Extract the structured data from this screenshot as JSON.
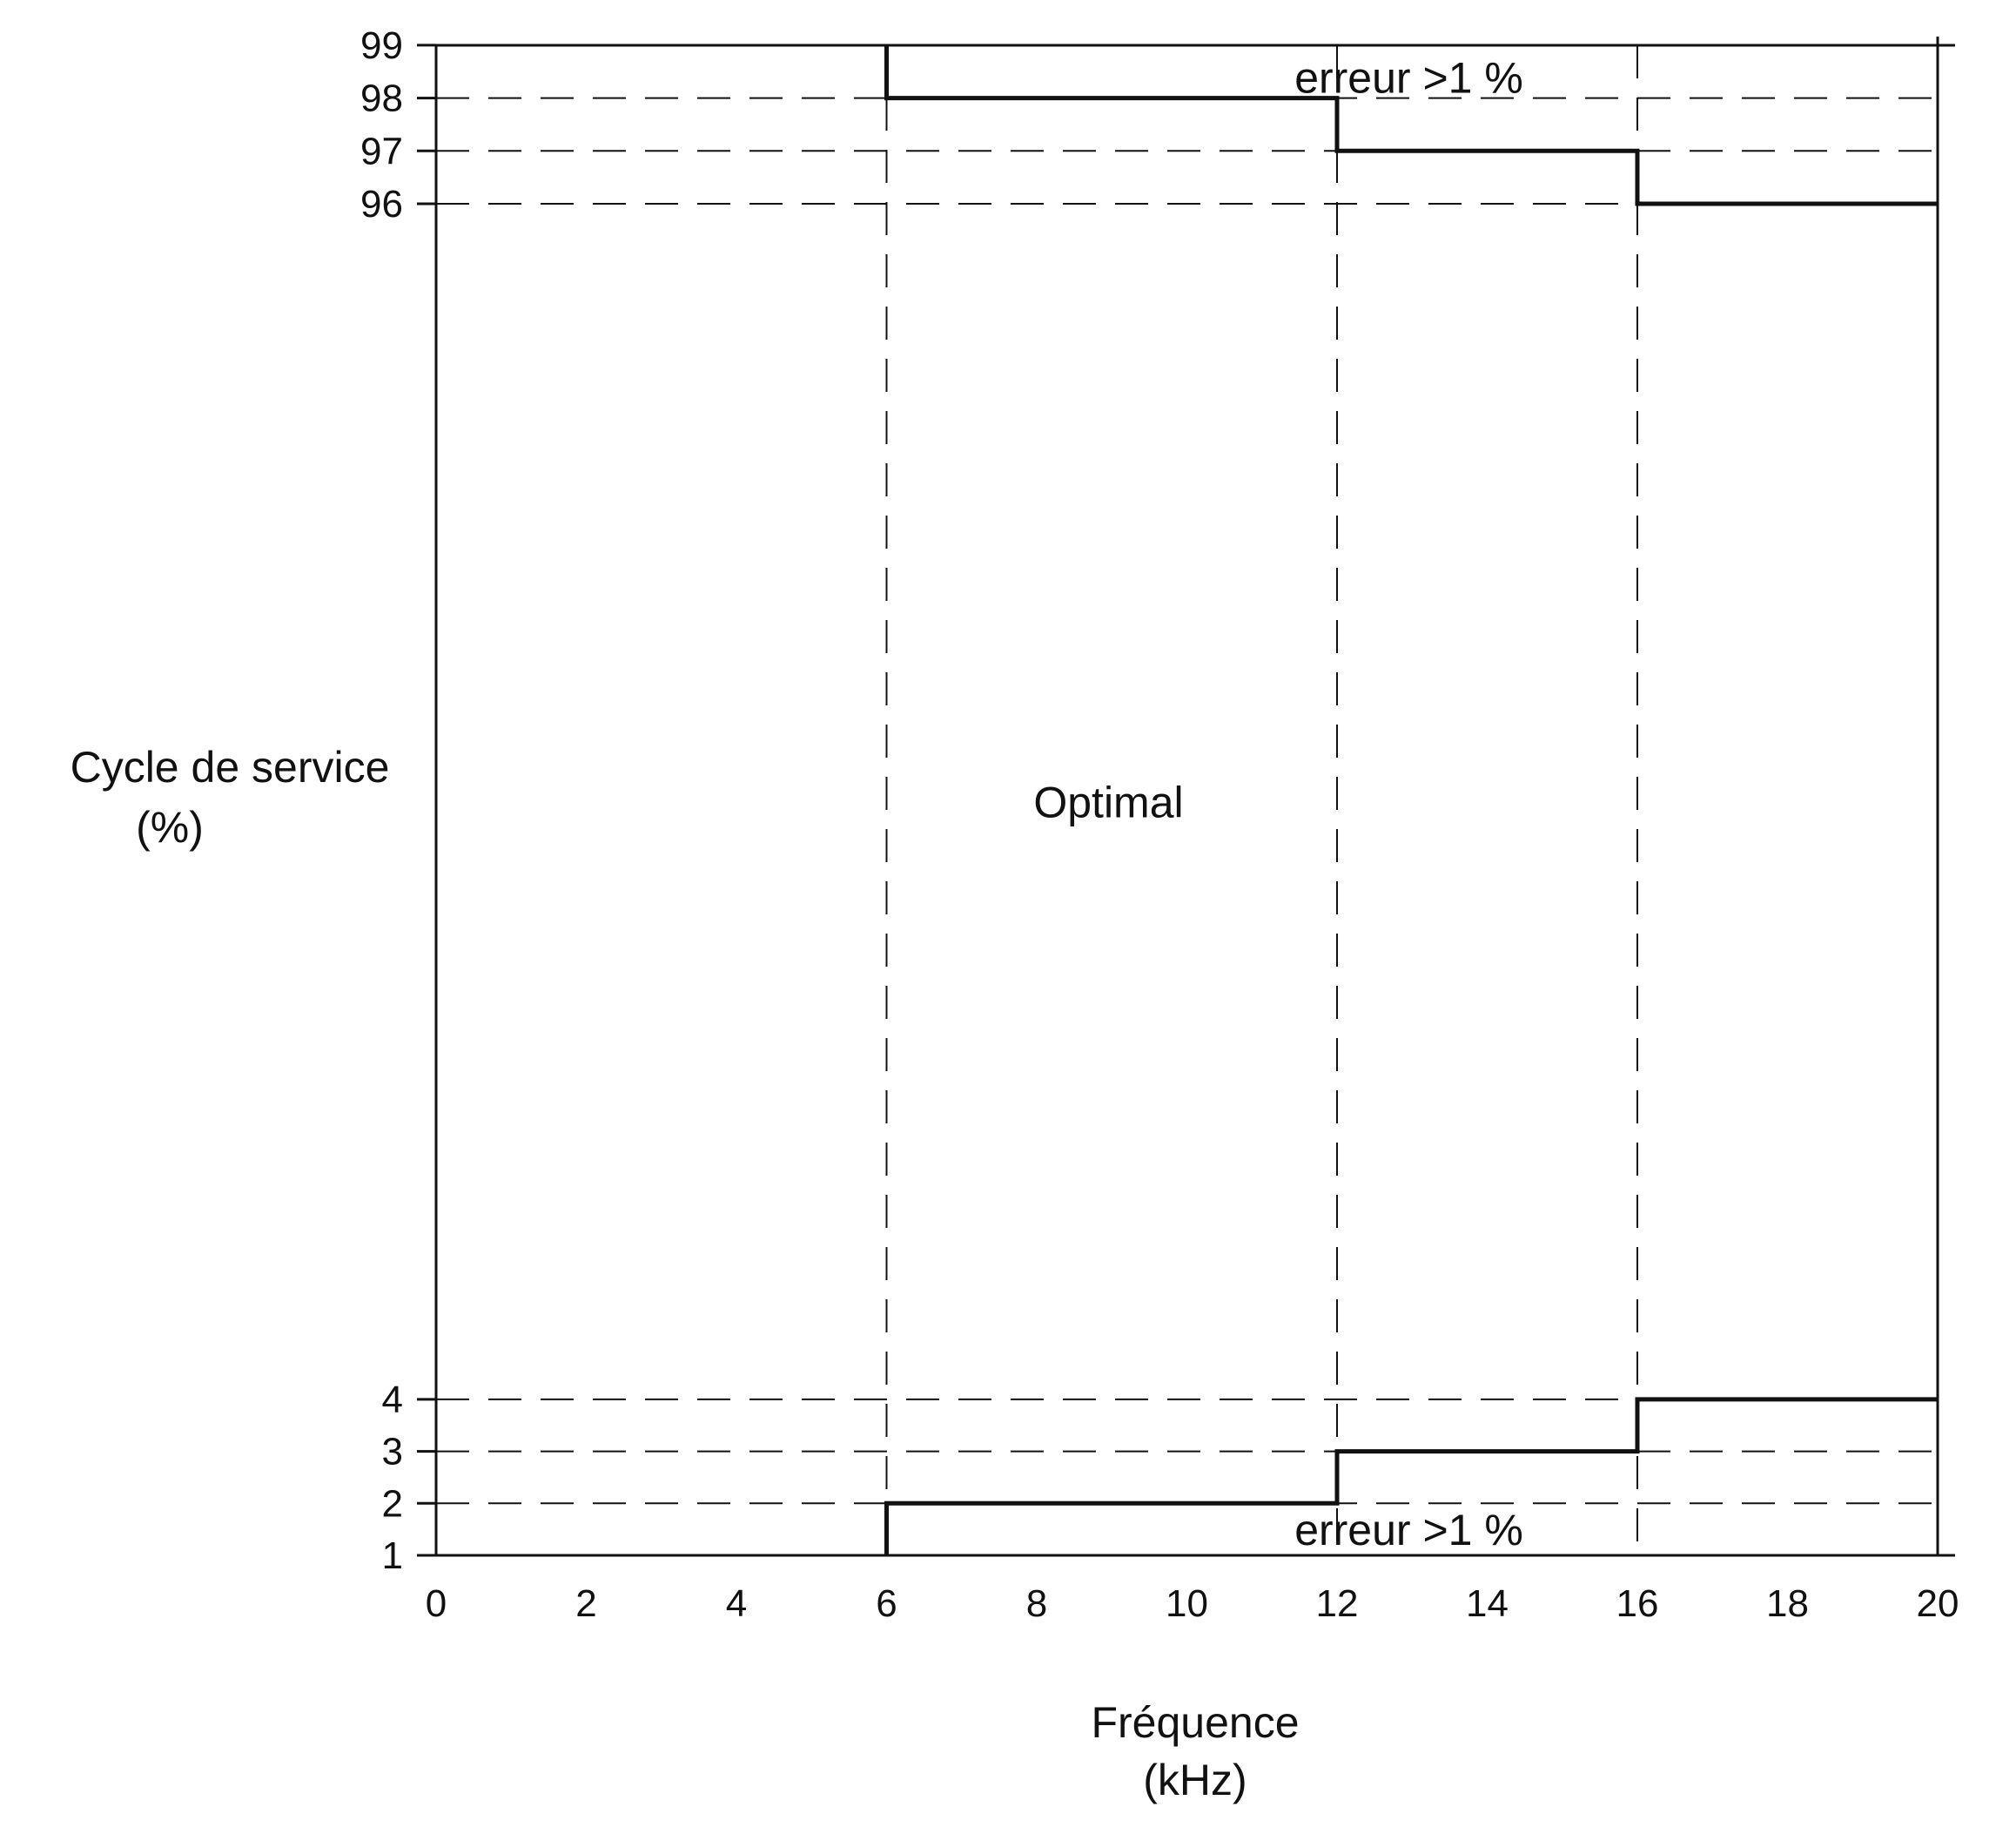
{
  "chart_data": {
    "type": "line",
    "title": "",
    "xlabel": [
      "Fréquence",
      "(kHz)"
    ],
    "ylabel": [
      "Cycle de service",
      "(%)"
    ],
    "xlim": [
      0,
      20
    ],
    "x_ticks": [
      "0",
      "2",
      "4",
      "6",
      "8",
      "10",
      "12",
      "14",
      "16",
      "18",
      "20"
    ],
    "y_ticks": [
      "1",
      "2",
      "3",
      "4",
      "96",
      "97",
      "98",
      "99"
    ],
    "grid": false,
    "series": [
      {
        "values": [
          {
            "x": 6,
            "y": 99
          },
          {
            "x": 6,
            "y": 98
          },
          {
            "x": 12,
            "y": 98
          },
          {
            "x": 12,
            "y": 97
          },
          {
            "x": 16,
            "y": 97
          },
          {
            "x": 16,
            "y": 96
          },
          {
            "x": 20,
            "y": 96
          }
        ]
      },
      {
        "values": [
          {
            "x": 6,
            "y": 1
          },
          {
            "x": 6,
            "y": 2
          },
          {
            "x": 12,
            "y": 2
          },
          {
            "x": 12,
            "y": 3
          },
          {
            "x": 16,
            "y": 3
          },
          {
            "x": 16,
            "y": 4
          },
          {
            "x": 20,
            "y": 4
          }
        ]
      }
    ],
    "reference_lines": {
      "horizontal": [
        98,
        97,
        96,
        4,
        3,
        2
      ],
      "vertical": [
        6,
        12,
        16
      ]
    },
    "annotations": [
      {
        "text": "erreur >1 %",
        "x": 14,
        "y": 98.4
      },
      {
        "text": "Optimal",
        "x": 10,
        "y": 50
      },
      {
        "text": "erreur >1 %",
        "x": 14,
        "y": 1.5
      }
    ],
    "colors": {
      "line": "#111111",
      "background": "#ffffff"
    }
  }
}
